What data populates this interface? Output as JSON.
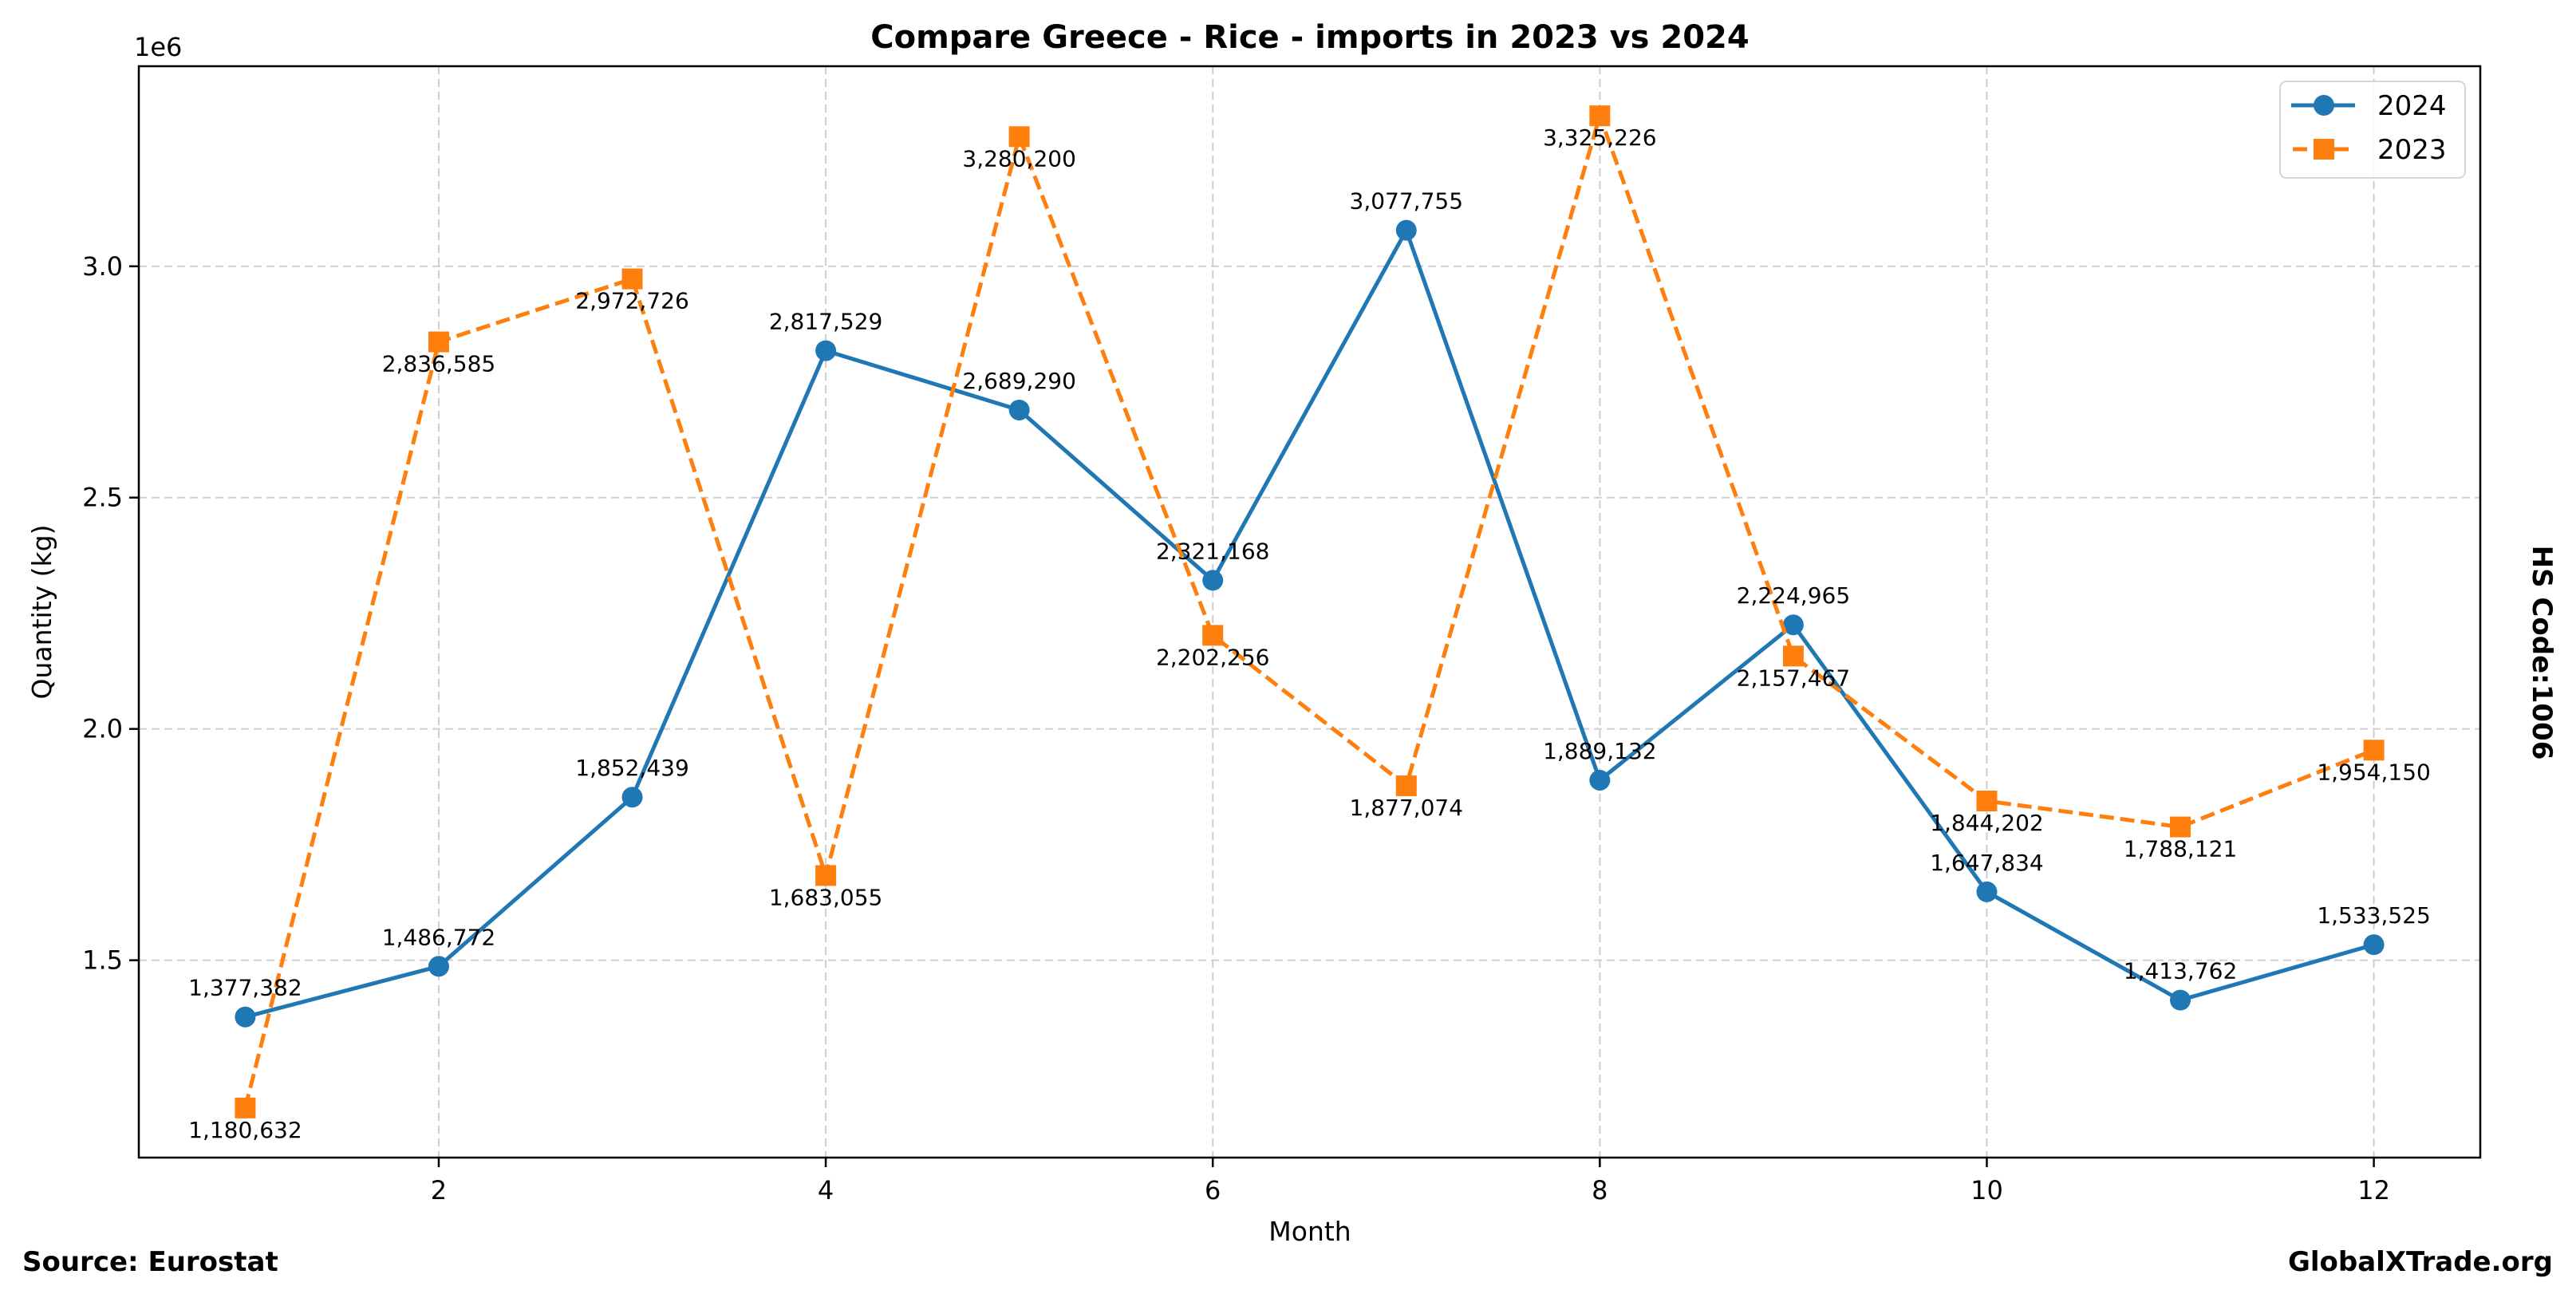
{
  "chart_data": {
    "type": "line",
    "title": "Compare Greece - Rice - imports in 2023 vs 2024",
    "xlabel": "Month",
    "ylabel": "Quantity (kg)",
    "y_offset_text": "1e6",
    "x": [
      1,
      2,
      3,
      4,
      5,
      6,
      7,
      8,
      9,
      10,
      11,
      12
    ],
    "xlim": [
      0.45,
      12.55
    ],
    "ylim": [
      1073400,
      3432450
    ],
    "xticks": [
      2,
      4,
      6,
      8,
      10,
      12
    ],
    "xtick_labels": [
      "2",
      "4",
      "6",
      "8",
      "10",
      "12"
    ],
    "yticks": [
      1500000,
      2000000,
      2500000,
      3000000
    ],
    "ytick_labels": [
      "1.5",
      "2.0",
      "2.5",
      "3.0"
    ],
    "grid": true,
    "legend_position": "top-right",
    "series": [
      {
        "name": "2024",
        "color": "#1f77b4",
        "linestyle": "solid",
        "marker": "circle",
        "label_position": "above",
        "values": [
          1377382,
          1486772,
          1852439,
          2817529,
          2689290,
          2321168,
          3077755,
          1889132,
          2224965,
          1647834,
          1413762,
          1533525
        ],
        "labels": [
          "1,377,382",
          "1,486,772",
          "1,852,439",
          "2,817,529",
          "2,689,290",
          "2,321,168",
          "3,077,755",
          "1,889,132",
          "2,224,965",
          "1,647,834",
          "1,413,762",
          "1,533,525"
        ]
      },
      {
        "name": "2023",
        "color": "#ff7f0e",
        "linestyle": "dashed",
        "marker": "square",
        "label_position": "below",
        "values": [
          1180632,
          2836585,
          2972726,
          1683055,
          3280200,
          2202256,
          1877074,
          3325226,
          2157467,
          1844202,
          1788121,
          1954150
        ],
        "labels": [
          "1,180,632",
          "2,836,585",
          "2,972,726",
          "1,683,055",
          "3,280,200",
          "2,202,256",
          "1,877,074",
          "3,325,226",
          "2,157,467",
          "1,844,202",
          "1,788,121",
          "1,954,150"
        ]
      }
    ],
    "side_label": "HS Code:1006",
    "source": "Source: Eurostat",
    "watermark": "GlobalXTrade.org"
  }
}
